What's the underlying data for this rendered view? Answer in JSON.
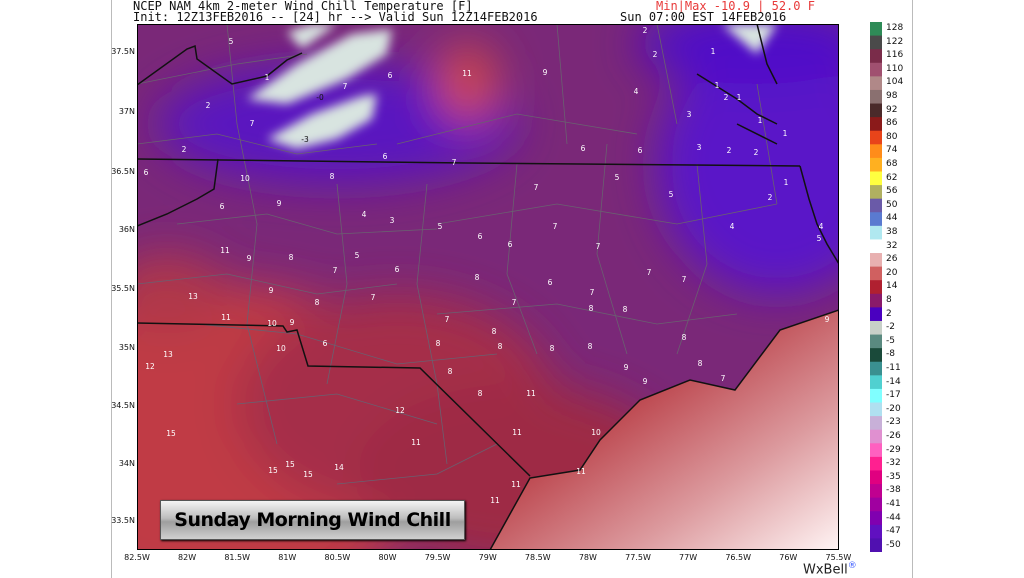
{
  "header": {
    "line1": "NCEP NAM 4km 2-meter Wind Chill Temperature [F]",
    "minmax": "Min|Max -10.9 | 52.0 F",
    "init_line": "Init: 12Z13FEB2016 -- [24] hr --> Valid Sun 12Z14FEB2016",
    "valid_local": "Sun 07:00 EST 14FEB2016"
  },
  "overlay_title": "Sunday Morning Wind Chill",
  "brand": {
    "text": "WxBell",
    "mark": "®"
  },
  "map": {
    "lat_labels": [
      "37.5N",
      "37N",
      "36.5N",
      "36N",
      "35.5N",
      "35N",
      "34.5N",
      "34N",
      "33.5N"
    ],
    "lon_labels": [
      "82.5W",
      "82W",
      "81.5W",
      "81W",
      "80.5W",
      "80W",
      "79.5W",
      "79W",
      "78.5W",
      "78W",
      "77.5W",
      "77W",
      "76.5W",
      "76W",
      "75.5W"
    ],
    "point_values": [
      "5",
      "1",
      "7",
      "-0",
      "6",
      "11",
      "2",
      "7",
      "-3",
      "2",
      "6",
      "7",
      "6",
      "10",
      "8",
      "9",
      "6",
      "4",
      "3",
      "5",
      "6",
      "11",
      "9",
      "8",
      "5",
      "7",
      "6",
      "8",
      "2",
      "2",
      "1",
      "9",
      "4",
      "1",
      "2",
      "1",
      "3",
      "1",
      "1",
      "6",
      "6",
      "3",
      "2",
      "2",
      "5",
      "7",
      "5",
      "1",
      "2",
      "7",
      "4",
      "4",
      "5",
      "6",
      "7",
      "7",
      "7",
      "6",
      "9",
      "13",
      "8",
      "7",
      "11",
      "10",
      "9",
      "7",
      "10",
      "6",
      "8",
      "13",
      "12",
      "8",
      "8",
      "12",
      "15",
      "11",
      "15",
      "15",
      "15",
      "14",
      "7",
      "7",
      "8",
      "8",
      "8",
      "9",
      "8",
      "8",
      "8",
      "8",
      "8",
      "9",
      "9",
      "7",
      "11",
      "11",
      "10",
      "11",
      "11",
      "11"
    ]
  },
  "colorbar": {
    "labels": [
      "128",
      "122",
      "116",
      "110",
      "104",
      "98",
      "92",
      "86",
      "80",
      "74",
      "68",
      "62",
      "56",
      "50",
      "44",
      "38",
      "32",
      "26",
      "20",
      "14",
      "8",
      "2",
      "-2",
      "-5",
      "-8",
      "-11",
      "-14",
      "-17",
      "-20",
      "-23",
      "-26",
      "-29",
      "-32",
      "-35",
      "-38",
      "-41",
      "-44",
      "-47",
      "-50"
    ],
    "colors": [
      "#2e8b57",
      "#4a4a4a",
      "#7a2c4a",
      "#a05070",
      "#b08888",
      "#8a7070",
      "#4a2a2a",
      "#8b1a1a",
      "#e8441a",
      "#ff8c1a",
      "#ffb020",
      "#ffff40",
      "#b0b060",
      "#6a5aa8",
      "#5a7ad0",
      "#b0e8f0",
      "#ffffff",
      "#e8b0b0",
      "#d06060",
      "#b02030",
      "#8a1a6a",
      "#4a00c0",
      "#c8d0c8",
      "#5a8a80",
      "#1a4a3a",
      "#3a9090",
      "#50d0d0",
      "#80ffff",
      "#b0e0f0",
      "#c8b0d8",
      "#e090d0",
      "#ff60c0",
      "#ff2090",
      "#e00080",
      "#c00090",
      "#a000a0",
      "#8000b0",
      "#6010c0",
      "#5010b0"
    ]
  }
}
